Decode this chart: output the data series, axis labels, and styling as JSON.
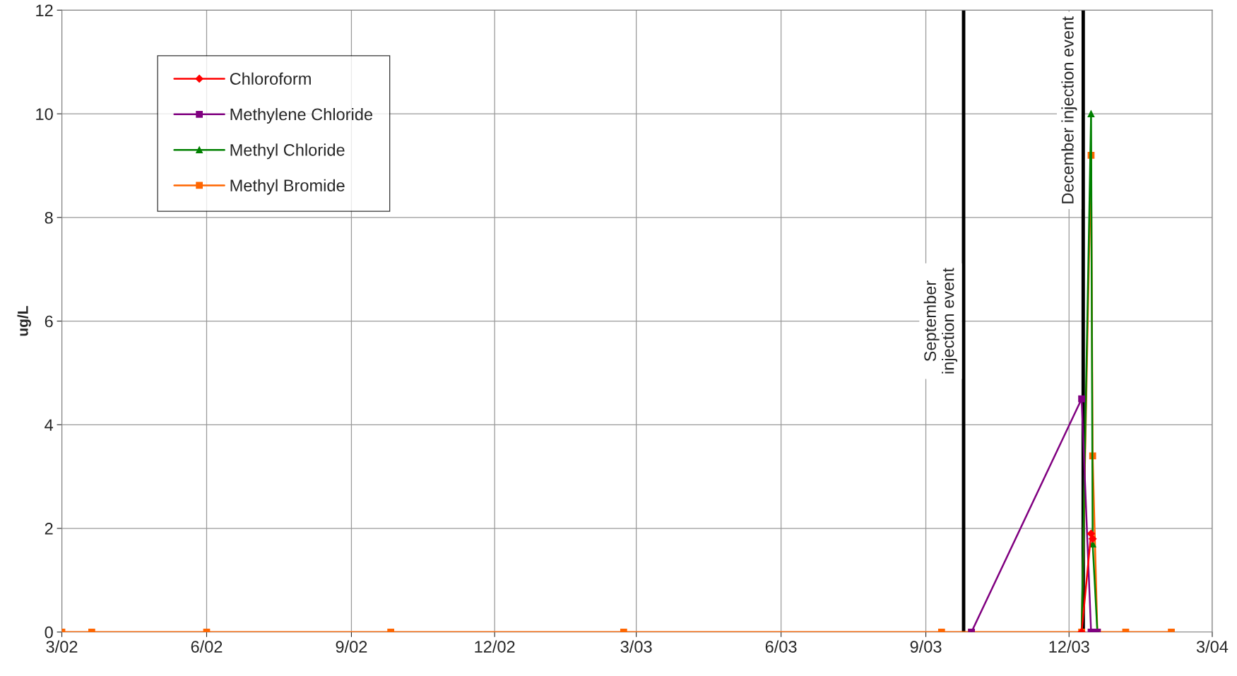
{
  "chart_data": {
    "type": "line",
    "ylabel": "ug/L",
    "x": [
      "2002-03-01",
      "2002-03-20",
      "2002-06-01",
      "2002-09-26",
      "2003-02-21",
      "2003-09-11",
      "2003-09-30",
      "2003-12-09",
      "2003-12-15",
      "2003-12-16",
      "2003-12-19",
      "2004-01-06",
      "2004-02-04"
    ],
    "series": [
      {
        "name": "Chloroform",
        "color": "#ff0000",
        "marker": "diamond",
        "values": [
          null,
          null,
          null,
          null,
          null,
          null,
          null,
          0,
          1.9,
          1.8,
          null,
          null,
          null
        ]
      },
      {
        "name": "Methylene Chloride",
        "color": "#800080",
        "marker": "square",
        "values": [
          null,
          null,
          null,
          null,
          null,
          null,
          0,
          4.5,
          0,
          0,
          0,
          null,
          null
        ]
      },
      {
        "name": "Methyl Chloride",
        "color": "#008000",
        "marker": "triangle",
        "values": [
          null,
          null,
          null,
          null,
          null,
          null,
          null,
          0,
          10,
          1.7,
          0,
          null,
          null
        ]
      },
      {
        "name": "Methyl Bromide",
        "color": "#ff6600",
        "marker": "square",
        "values": [
          0,
          0,
          0,
          0,
          0,
          0,
          0,
          0,
          9.2,
          3.4,
          0,
          0,
          0
        ]
      }
    ],
    "xlim": [
      "2002-03-01",
      "2004-03-01"
    ],
    "xticks": [
      {
        "value": "2002-03-01",
        "label": "3/02"
      },
      {
        "value": "2002-06-01",
        "label": "6/02"
      },
      {
        "value": "2002-09-01",
        "label": "9/02"
      },
      {
        "value": "2002-12-01",
        "label": "12/02"
      },
      {
        "value": "2003-03-01",
        "label": "3/03"
      },
      {
        "value": "2003-06-01",
        "label": "6/03"
      },
      {
        "value": "2003-09-01",
        "label": "9/03"
      },
      {
        "value": "2003-12-01",
        "label": "12/03"
      },
      {
        "value": "2004-03-01",
        "label": "3/04"
      }
    ],
    "ylim": [
      0,
      12
    ],
    "yticks": [
      0,
      2,
      4,
      6,
      8,
      10,
      12
    ],
    "ref_lines": [
      {
        "axis": "x",
        "value": "2003-09-25",
        "label": "September\ninjection event",
        "color": "#000000"
      },
      {
        "axis": "x",
        "value": "2003-12-10",
        "label": "December injection event",
        "color": "#000000"
      }
    ],
    "grid": true,
    "legend": "top left",
    "line_style": "solid"
  }
}
